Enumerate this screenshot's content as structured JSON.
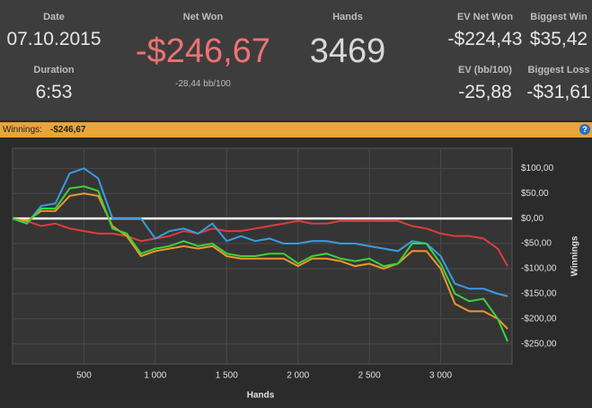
{
  "header": {
    "date_label": "Date",
    "date": "07.10.2015",
    "duration_label": "Duration",
    "duration": "6:53",
    "net_won_label": "Net Won",
    "net_won": "-$246,67",
    "bb100": "-28,44 bb/100",
    "hands_label": "Hands",
    "hands": "3469",
    "ev_net_won_label": "EV Net Won",
    "ev_net_won": "-$224,43",
    "biggest_win_label": "Biggest Win",
    "biggest_win": "$35,42",
    "ev_bb100_label": "EV (bb/100)",
    "ev_bb100": "-25,88",
    "biggest_loss_label": "Biggest Loss",
    "biggest_loss": "-$31,61"
  },
  "bar": {
    "label": "Winnings:",
    "value": "-$246,67",
    "help": "?"
  },
  "chart_data": {
    "type": "line",
    "x_label": "Hands",
    "y_label": "Winnings",
    "x": [
      0,
      100,
      200,
      300,
      400,
      500,
      600,
      700,
      800,
      900,
      1000,
      1100,
      1200,
      1300,
      1400,
      1500,
      1600,
      1700,
      1800,
      1900,
      2000,
      2100,
      2200,
      2300,
      2400,
      2500,
      2600,
      2700,
      2800,
      2900,
      3000,
      3100,
      3200,
      3300,
      3400,
      3469
    ],
    "series": [
      {
        "color": "#e03c3c",
        "values": [
          0,
          -5,
          -15,
          -10,
          -20,
          -25,
          -30,
          -30,
          -35,
          -45,
          -40,
          -35,
          -25,
          -30,
          -20,
          -25,
          -25,
          -20,
          -15,
          -10,
          -5,
          -10,
          -10,
          -5,
          -5,
          -5,
          -5,
          -5,
          -15,
          -20,
          -30,
          -35,
          -35,
          -40,
          -60,
          -95
        ]
      },
      {
        "color": "#3a9be0",
        "values": [
          0,
          -10,
          25,
          30,
          90,
          100,
          80,
          0,
          0,
          0,
          -40,
          -25,
          -20,
          -30,
          -10,
          -45,
          -35,
          -45,
          -40,
          -50,
          -50,
          -45,
          -45,
          -50,
          -50,
          -55,
          -60,
          -65,
          -45,
          -50,
          -75,
          -130,
          -140,
          -140,
          -150,
          -155
        ]
      },
      {
        "color": "#f0962a",
        "values": [
          0,
          -5,
          15,
          15,
          45,
          50,
          45,
          -15,
          -35,
          -75,
          -65,
          -60,
          -55,
          -60,
          -55,
          -75,
          -80,
          -80,
          -80,
          -80,
          -95,
          -80,
          -80,
          -85,
          -95,
          -90,
          -100,
          -90,
          -65,
          -65,
          -100,
          -170,
          -185,
          -185,
          -200,
          -220
        ]
      },
      {
        "color": "#3cd23c",
        "values": [
          0,
          -10,
          20,
          20,
          60,
          64,
          55,
          -20,
          -30,
          -70,
          -60,
          -55,
          -45,
          -55,
          -50,
          -70,
          -75,
          -75,
          -70,
          -70,
          -90,
          -75,
          -70,
          -80,
          -85,
          -80,
          -95,
          -90,
          -50,
          -50,
          -90,
          -150,
          -165,
          -160,
          -200,
          -245
        ]
      }
    ],
    "xlim": [
      0,
      3500
    ],
    "ylim": [
      -290,
      140
    ],
    "xticks": [
      500,
      {
        "value": 1000,
        "label": "1 000"
      },
      {
        "value": 1500,
        "label": "1 500"
      },
      {
        "value": 2000,
        "label": "2 000"
      },
      {
        "value": 2500,
        "label": "2 500"
      },
      {
        "value": 3000,
        "label": "3 000"
      }
    ],
    "yticks": [
      {
        "value": 100,
        "label": "$100,00"
      },
      {
        "value": 50,
        "label": "$50,00"
      },
      {
        "value": 0,
        "label": "$0,00"
      },
      {
        "value": -50,
        "label": "-$50,00"
      },
      {
        "value": -100,
        "label": "-$100,00"
      },
      {
        "value": -150,
        "label": "-$150,00"
      },
      {
        "value": -200,
        "label": "-$200,00"
      },
      {
        "value": -250,
        "label": "-$250,00"
      }
    ],
    "grid": true
  }
}
